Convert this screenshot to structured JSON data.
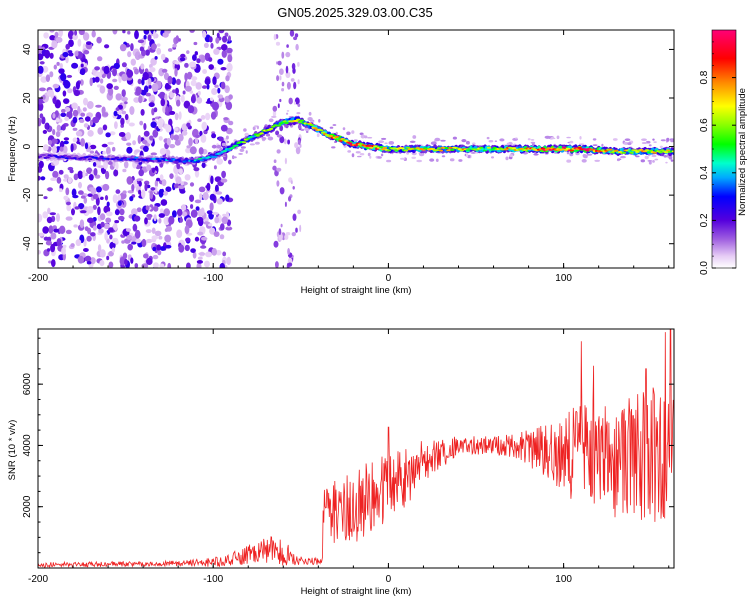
{
  "page_title": "GN05.2025.329.03.00.C35",
  "chart_data": [
    {
      "type": "heatmap",
      "title": "GN05.2025.329.03.00.C35",
      "xlabel": "Height of straight line (km)",
      "ylabel": "Frequency (Hz)",
      "xlim": [
        -200,
        163
      ],
      "ylim": [
        -50,
        48
      ],
      "xticks": [
        -200,
        -100,
        0,
        100
      ],
      "yticks": [
        -40,
        -20,
        0,
        20,
        40
      ],
      "colorbar": {
        "label": "Normalized spectral amplitude",
        "range": [
          0.0,
          1.0
        ],
        "ticks": [
          0.0,
          0.2,
          0.4,
          0.6,
          0.8
        ],
        "tick_labels": [
          "0.0",
          "0.2",
          "0.4",
          "0.6",
          "0.8"
        ]
      },
      "noise_region": {
        "x_range": [
          -200,
          -100
        ],
        "noise_band": [
          -65,
          -50
        ]
      },
      "ridge": [
        {
          "x": -200,
          "freq": -4,
          "amplitude": 0.15
        },
        {
          "x": -150,
          "freq": -5,
          "amplitude": 0.2
        },
        {
          "x": -110,
          "freq": -6,
          "amplitude": 0.3
        },
        {
          "x": -100,
          "freq": -4,
          "amplitude": 0.35
        },
        {
          "x": -80,
          "freq": 3,
          "amplitude": 0.45
        },
        {
          "x": -60,
          "freq": 10,
          "amplitude": 0.5
        },
        {
          "x": -52,
          "freq": 11,
          "amplitude": 0.55
        },
        {
          "x": -45,
          "freq": 9,
          "amplitude": 0.55
        },
        {
          "x": -35,
          "freq": 5,
          "amplitude": 0.65
        },
        {
          "x": -20,
          "freq": 1,
          "amplitude": 0.75
        },
        {
          "x": -10,
          "freq": 0,
          "amplitude": 0.8
        },
        {
          "x": 0,
          "freq": -1,
          "amplitude": 0.55
        },
        {
          "x": 30,
          "freq": -1,
          "amplitude": 0.6
        },
        {
          "x": 60,
          "freq": -1,
          "amplitude": 0.55
        },
        {
          "x": 90,
          "freq": -1,
          "amplitude": 0.75
        },
        {
          "x": 110,
          "freq": -1,
          "amplitude": 0.8
        },
        {
          "x": 130,
          "freq": -2,
          "amplitude": 0.6
        },
        {
          "x": 163,
          "freq": -2,
          "amplitude": 0.55
        }
      ]
    },
    {
      "type": "line",
      "xlabel": "Height of straight line (km)",
      "ylabel": "SNR (10 * v/v)",
      "xlim": [
        -200,
        163
      ],
      "ylim": [
        0,
        7800
      ],
      "xticks": [
        -200,
        -100,
        0,
        100
      ],
      "yticks": [
        2000,
        4000,
        6000
      ],
      "series": [
        {
          "name": "SNR",
          "color": "#ee2222",
          "envelope": [
            {
              "x": -200,
              "mean": 100,
              "spread": 80
            },
            {
              "x": -120,
              "mean": 150,
              "spread": 90
            },
            {
              "x": -100,
              "mean": 180,
              "spread": 150
            },
            {
              "x": -85,
              "mean": 350,
              "spread": 250
            },
            {
              "x": -70,
              "mean": 600,
              "spread": 450
            },
            {
              "x": -60,
              "mean": 500,
              "spread": 450
            },
            {
              "x": -52,
              "mean": 250,
              "spread": 150
            },
            {
              "x": -38,
              "mean": 200,
              "spread": 100
            },
            {
              "x": -37,
              "mean": 1700,
              "spread": 1100
            },
            {
              "x": -20,
              "mean": 2000,
              "spread": 1200
            },
            {
              "x": 0,
              "mean": 2500,
              "spread": 1400
            },
            {
              "x": 20,
              "mean": 3500,
              "spread": 700
            },
            {
              "x": 40,
              "mean": 4000,
              "spread": 300
            },
            {
              "x": 60,
              "mean": 4000,
              "spread": 300
            },
            {
              "x": 75,
              "mean": 4000,
              "spread": 450
            },
            {
              "x": 90,
              "mean": 3800,
              "spread": 900
            },
            {
              "x": 110,
              "mean": 3700,
              "spread": 1800
            },
            {
              "x": 130,
              "mean": 3600,
              "spread": 2000
            },
            {
              "x": 150,
              "mean": 3700,
              "spread": 2200
            },
            {
              "x": 163,
              "mean": 3600,
              "spread": 2200
            }
          ],
          "peaks": [
            {
              "x": 0,
              "value": 4600
            },
            {
              "x": 110,
              "value": 7400
            },
            {
              "x": 117,
              "value": 6600
            },
            {
              "x": 147,
              "value": 6500
            },
            {
              "x": 158,
              "value": 7700
            },
            {
              "x": 161,
              "value": 7800
            }
          ]
        }
      ]
    }
  ]
}
